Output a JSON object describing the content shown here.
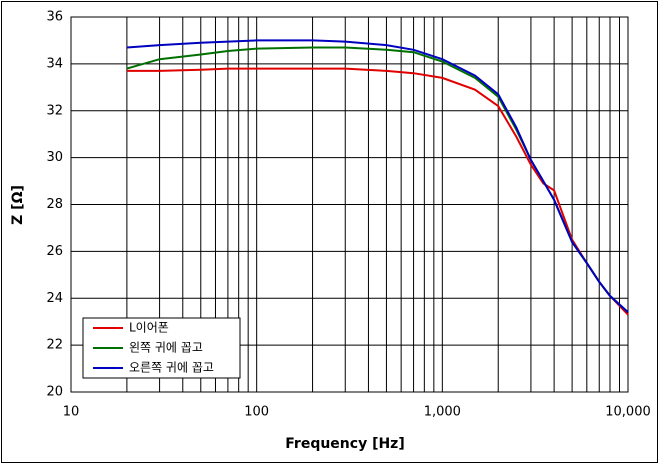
{
  "chart_data": {
    "type": "line",
    "xlabel": "Frequency [Hz]",
    "ylabel": "Z [Ω]",
    "xscale": "log",
    "x": [
      20,
      30,
      50,
      70,
      100,
      200,
      300,
      500,
      700,
      1000,
      1500,
      2000,
      2500,
      3000,
      3500,
      4000,
      5000,
      6000,
      7000,
      8000,
      10000
    ],
    "series": [
      {
        "name": "L이어폰",
        "color": "#e00000",
        "values": [
          33.7,
          33.7,
          33.75,
          33.8,
          33.8,
          33.8,
          33.8,
          33.7,
          33.6,
          33.4,
          32.9,
          32.2,
          30.9,
          29.7,
          28.9,
          28.6,
          26.5,
          25.5,
          24.7,
          24.1,
          23.3
        ]
      },
      {
        "name": "왼쪽 귀에 꼽고",
        "color": "#007000",
        "values": [
          33.8,
          34.2,
          34.4,
          34.55,
          34.65,
          34.7,
          34.7,
          34.6,
          34.5,
          34.1,
          33.4,
          32.6,
          31.2,
          29.9,
          29.0,
          28.2,
          26.4,
          25.5,
          24.7,
          24.1,
          23.4
        ]
      },
      {
        "name": "오른쪽 귀에 꼽고",
        "color": "#0000c0",
        "values": [
          34.7,
          34.8,
          34.9,
          34.95,
          35.0,
          35.0,
          34.95,
          34.8,
          34.6,
          34.2,
          33.5,
          32.7,
          31.3,
          29.9,
          29.0,
          28.2,
          26.4,
          25.5,
          24.7,
          24.1,
          23.4
        ]
      }
    ],
    "xlim": [
      10,
      10000
    ],
    "xticks": [
      10,
      100,
      {
        "value": 1000,
        "label": "1,000"
      },
      {
        "value": 10000,
        "label": "10,000"
      }
    ],
    "xminorticks": [
      20,
      30,
      40,
      50,
      60,
      70,
      80,
      90,
      200,
      300,
      400,
      500,
      600,
      700,
      800,
      900,
      2000,
      3000,
      4000,
      5000,
      6000,
      7000,
      8000,
      9000
    ],
    "ylim": [
      20,
      36
    ],
    "yticks": [
      20,
      22,
      24,
      26,
      28,
      30,
      32,
      34,
      36
    ],
    "grid": true,
    "legend": "lower left"
  }
}
